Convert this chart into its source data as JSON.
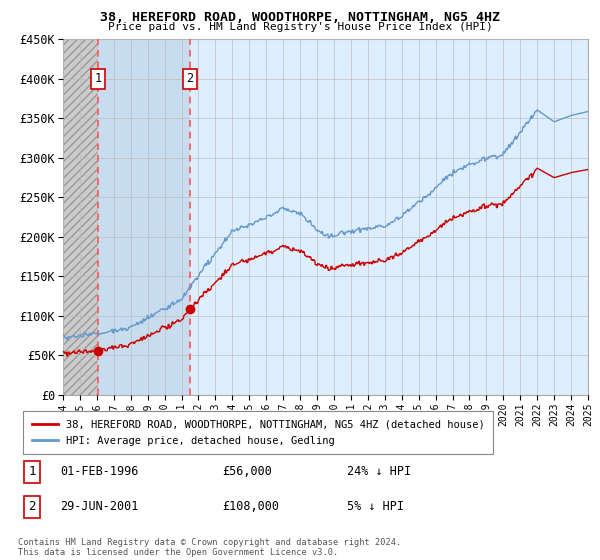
{
  "title": "38, HEREFORD ROAD, WOODTHORPE, NOTTINGHAM, NG5 4HZ",
  "subtitle": "Price paid vs. HM Land Registry's House Price Index (HPI)",
  "ylim": [
    0,
    450000
  ],
  "yticks": [
    0,
    50000,
    100000,
    150000,
    200000,
    250000,
    300000,
    350000,
    400000,
    450000
  ],
  "ytick_labels": [
    "£0",
    "£50K",
    "£100K",
    "£150K",
    "£200K",
    "£250K",
    "£300K",
    "£350K",
    "£400K",
    "£450K"
  ],
  "xlim_start": 1994,
  "xlim_end": 2025,
  "price_paid_color": "#cc0000",
  "hpi_color": "#6699cc",
  "sale1_date": 1996.083,
  "sale1_price": 56000,
  "sale1_label": "1",
  "sale1_date_str": "01-FEB-1996",
  "sale1_price_str": "£56,000",
  "sale1_pct": "24% ↓ HPI",
  "sale2_date": 2001.493,
  "sale2_price": 108000,
  "sale2_label": "2",
  "sale2_date_str": "29-JUN-2001",
  "sale2_price_str": "£108,000",
  "sale2_pct": "5% ↓ HPI",
  "legend_label1": "38, HEREFORD ROAD, WOODTHORPE, NOTTINGHAM, NG5 4HZ (detached house)",
  "legend_label2": "HPI: Average price, detached house, Gedling",
  "footnote_line1": "Contains HM Land Registry data © Crown copyright and database right 2024.",
  "footnote_line2": "This data is licensed under the Open Government Licence v3.0.",
  "plot_bg_color": "#ddeeff",
  "hatch_bg_color": "#d0d0d0",
  "between_sale_bg_color": "#d8e8f8",
  "grid_color": "#bbbbbb",
  "dashed_line_color": "#ff5555",
  "label_box_color": "#cc0000"
}
